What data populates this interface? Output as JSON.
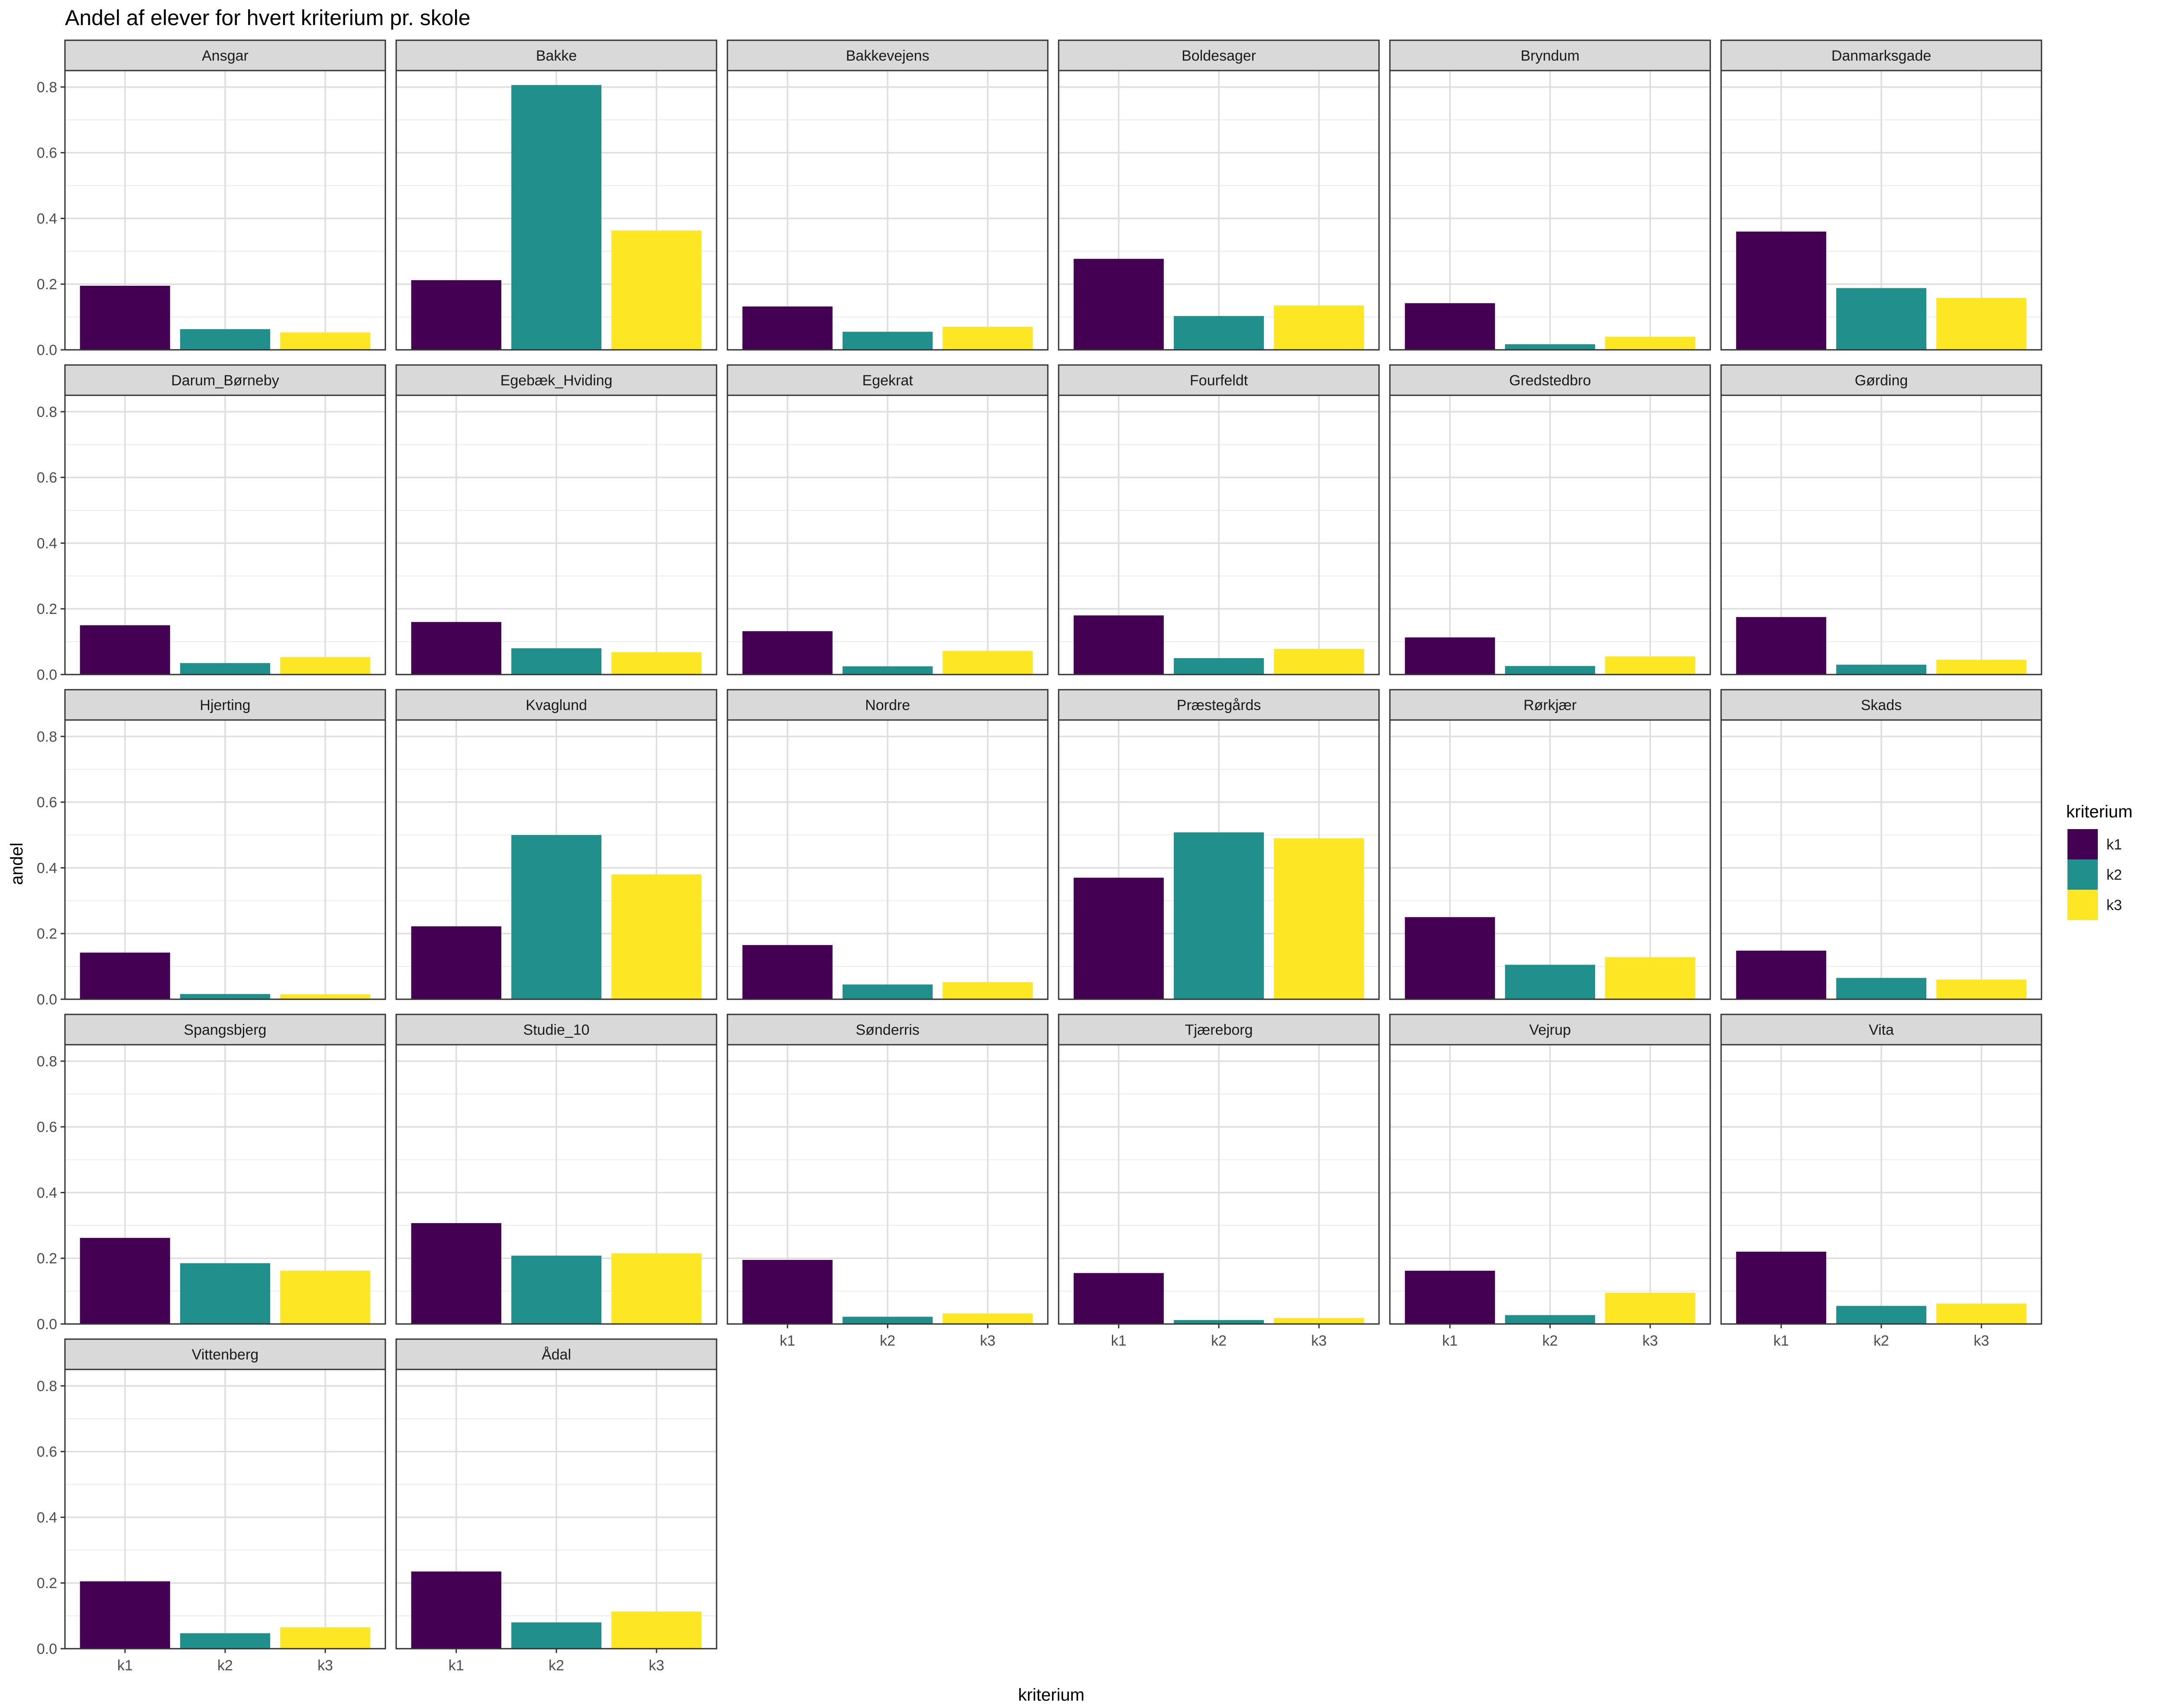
{
  "chart_data": {
    "type": "bar",
    "title": "Andel af elever for hvert kriterium pr. skole",
    "xlabel": "kriterium",
    "ylabel": "andel",
    "categories": [
      "k1",
      "k2",
      "k3"
    ],
    "ylim": [
      0,
      0.85
    ],
    "yticks": [
      "0.0",
      "0.2",
      "0.4",
      "0.6",
      "0.8"
    ],
    "grid": true,
    "legend": {
      "title": "kriterium",
      "position": "right",
      "entries": [
        "k1",
        "k2",
        "k3"
      ]
    },
    "colors": {
      "k1": "#440154",
      "k2": "#21908C",
      "k3": "#FDE725"
    },
    "panels": [
      {
        "name": "Ansgar",
        "values": [
          0.195,
          0.063,
          0.053
        ]
      },
      {
        "name": "Bakke",
        "values": [
          0.212,
          0.806,
          0.363
        ]
      },
      {
        "name": "Bakkevejens",
        "values": [
          0.132,
          0.055,
          0.07
        ]
      },
      {
        "name": "Boldesager",
        "values": [
          0.277,
          0.103,
          0.135
        ]
      },
      {
        "name": "Bryndum",
        "values": [
          0.142,
          0.017,
          0.04
        ]
      },
      {
        "name": "Danmarksgade",
        "values": [
          0.36,
          0.188,
          0.158
        ]
      },
      {
        "name": "Darum_Børneby",
        "values": [
          0.15,
          0.035,
          0.053
        ]
      },
      {
        "name": "Egebæk_Hviding",
        "values": [
          0.16,
          0.08,
          0.068
        ]
      },
      {
        "name": "Egekrat",
        "values": [
          0.132,
          0.025,
          0.072
        ]
      },
      {
        "name": "Fourfeldt",
        "values": [
          0.18,
          0.05,
          0.078
        ]
      },
      {
        "name": "Gredstedbro",
        "values": [
          0.113,
          0.026,
          0.055
        ]
      },
      {
        "name": "Gørding",
        "values": [
          0.175,
          0.03,
          0.045
        ]
      },
      {
        "name": "Hjerting",
        "values": [
          0.142,
          0.016,
          0.015
        ]
      },
      {
        "name": "Kvaglund",
        "values": [
          0.222,
          0.5,
          0.38
        ]
      },
      {
        "name": "Nordre",
        "values": [
          0.165,
          0.045,
          0.052
        ]
      },
      {
        "name": "Præstegårds",
        "values": [
          0.37,
          0.508,
          0.49
        ]
      },
      {
        "name": "Rørkjær",
        "values": [
          0.25,
          0.105,
          0.128
        ]
      },
      {
        "name": "Skads",
        "values": [
          0.148,
          0.065,
          0.06
        ]
      },
      {
        "name": "Spangsbjerg",
        "values": [
          0.262,
          0.185,
          0.162
        ]
      },
      {
        "name": "Studie_10",
        "values": [
          0.307,
          0.208,
          0.215
        ]
      },
      {
        "name": "Sønderris",
        "values": [
          0.195,
          0.022,
          0.032
        ]
      },
      {
        "name": "Tjæreborg",
        "values": [
          0.155,
          0.012,
          0.018
        ]
      },
      {
        "name": "Vejrup",
        "values": [
          0.162,
          0.027,
          0.095
        ]
      },
      {
        "name": "Vita",
        "values": [
          0.22,
          0.055,
          0.062
        ]
      },
      {
        "name": "Vittenberg",
        "values": [
          0.205,
          0.047,
          0.065
        ]
      },
      {
        "name": "Ådal",
        "values": [
          0.235,
          0.08,
          0.113
        ]
      }
    ]
  }
}
